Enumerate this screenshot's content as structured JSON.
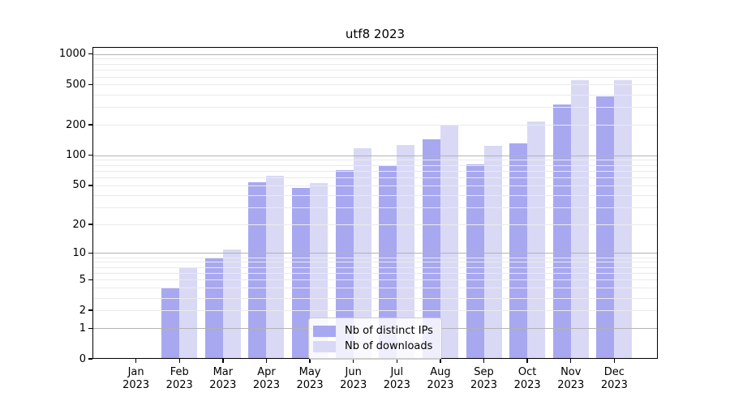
{
  "chart_data": {
    "type": "bar",
    "title": "utf8 2023",
    "categories": [
      "Jan 2023",
      "Feb 2023",
      "Mar 2023",
      "Apr 2023",
      "May 2023",
      "Jun 2023",
      "Jul 2023",
      "Aug 2023",
      "Sep 2023",
      "Oct 2023",
      "Nov 2023",
      "Dec 2023"
    ],
    "series": [
      {
        "name": "Nb of distinct IPs",
        "color": "#a8a8f0",
        "values": [
          0,
          4,
          9,
          54,
          47,
          71,
          78,
          145,
          81,
          130,
          320,
          380
        ]
      },
      {
        "name": "Nb of downloads",
        "color": "#d9d9f6",
        "values": [
          0,
          7,
          11,
          62,
          53,
          118,
          127,
          200,
          123,
          215,
          550,
          550
        ]
      }
    ],
    "yscale": "log1p",
    "ylim": [
      0,
      1120
    ],
    "yticks": [
      0,
      1,
      2,
      5,
      10,
      20,
      50,
      100,
      200,
      500,
      1000
    ],
    "ytick_labels": [
      "0",
      "1",
      "2",
      "5",
      "10",
      "20",
      "50",
      "100",
      "200",
      "500",
      "1000"
    ],
    "grid": true,
    "grid_major_values": [
      1,
      10,
      100,
      1000
    ],
    "grid_minor_bases": [
      1,
      10,
      100
    ],
    "legend_position": "lower center",
    "legend_labels": [
      "Nb of distinct IPs",
      "Nb of downloads"
    ]
  },
  "colors": {
    "grid_major": "#b3b3b3",
    "grid_minor": "#eaeaea",
    "frame": "#000000",
    "legend_border": "#cccccc"
  }
}
